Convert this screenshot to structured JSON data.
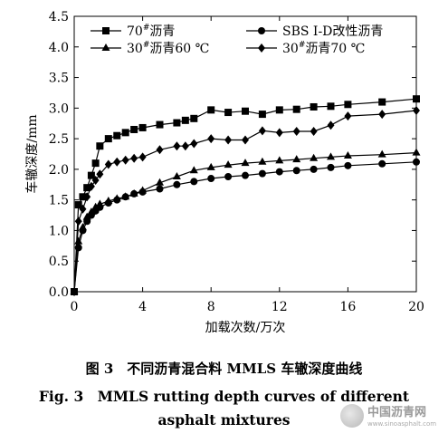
{
  "chart_data": {
    "type": "line",
    "xlabel": "加载次数/万次",
    "ylabel": "车辙深度/mm",
    "xlim": [
      0,
      20
    ],
    "ylim": [
      0,
      4.5
    ],
    "xticks": [
      "0",
      "4",
      "8",
      "12",
      "16",
      "20"
    ],
    "yticks": [
      "0.0",
      "0.5",
      "1.0",
      "1.5",
      "2.0",
      "2.5",
      "3.0",
      "3.5",
      "4.0",
      "4.5"
    ],
    "grid": false,
    "legend_position": "top",
    "series": [
      {
        "name": "70#沥青",
        "marker": "square",
        "points": [
          [
            0,
            0
          ],
          [
            0.25,
            1.42
          ],
          [
            0.5,
            1.55
          ],
          [
            0.75,
            1.7
          ],
          [
            1,
            1.9
          ],
          [
            1.25,
            2.1
          ],
          [
            1.5,
            2.38
          ],
          [
            2,
            2.5
          ],
          [
            2.5,
            2.55
          ],
          [
            3,
            2.6
          ],
          [
            3.5,
            2.65
          ],
          [
            4,
            2.68
          ],
          [
            5,
            2.73
          ],
          [
            6,
            2.76
          ],
          [
            6.5,
            2.8
          ],
          [
            7,
            2.83
          ],
          [
            8,
            2.97
          ],
          [
            9,
            2.93
          ],
          [
            10,
            2.95
          ],
          [
            11,
            2.9
          ],
          [
            12,
            2.97
          ],
          [
            13,
            2.98
          ],
          [
            14,
            3.02
          ],
          [
            15,
            3.03
          ],
          [
            16,
            3.06
          ],
          [
            18,
            3.1
          ],
          [
            20,
            3.15
          ]
        ]
      },
      {
        "name": "SBS I-D改性沥青",
        "marker": "circle",
        "points": [
          [
            0,
            0
          ],
          [
            0.25,
            0.72
          ],
          [
            0.5,
            1.0
          ],
          [
            0.75,
            1.15
          ],
          [
            1,
            1.25
          ],
          [
            1.25,
            1.32
          ],
          [
            1.5,
            1.38
          ],
          [
            2,
            1.45
          ],
          [
            2.5,
            1.5
          ],
          [
            3,
            1.55
          ],
          [
            3.5,
            1.6
          ],
          [
            4,
            1.63
          ],
          [
            5,
            1.68
          ],
          [
            6,
            1.75
          ],
          [
            7,
            1.8
          ],
          [
            8,
            1.85
          ],
          [
            9,
            1.88
          ],
          [
            10,
            1.9
          ],
          [
            11,
            1.93
          ],
          [
            12,
            1.96
          ],
          [
            13,
            1.98
          ],
          [
            14,
            2.0
          ],
          [
            15,
            2.03
          ],
          [
            16,
            2.06
          ],
          [
            18,
            2.09
          ],
          [
            20,
            2.12
          ]
        ]
      },
      {
        "name": "30#沥青60 ℃",
        "marker": "triangle",
        "points": [
          [
            0,
            0
          ],
          [
            0.25,
            0.82
          ],
          [
            0.5,
            1.05
          ],
          [
            0.75,
            1.22
          ],
          [
            1,
            1.3
          ],
          [
            1.25,
            1.38
          ],
          [
            1.5,
            1.43
          ],
          [
            2,
            1.48
          ],
          [
            2.5,
            1.52
          ],
          [
            3,
            1.55
          ],
          [
            3.5,
            1.6
          ],
          [
            4,
            1.65
          ],
          [
            5,
            1.78
          ],
          [
            6,
            1.88
          ],
          [
            7,
            1.98
          ],
          [
            8,
            2.03
          ],
          [
            9,
            2.07
          ],
          [
            10,
            2.1
          ],
          [
            11,
            2.12
          ],
          [
            12,
            2.14
          ],
          [
            13,
            2.16
          ],
          [
            14,
            2.18
          ],
          [
            15,
            2.2
          ],
          [
            16,
            2.22
          ],
          [
            18,
            2.24
          ],
          [
            20,
            2.27
          ]
        ]
      },
      {
        "name": "30#沥青70 ℃",
        "marker": "diamond",
        "points": [
          [
            0,
            0
          ],
          [
            0.25,
            1.15
          ],
          [
            0.5,
            1.35
          ],
          [
            0.75,
            1.55
          ],
          [
            1,
            1.72
          ],
          [
            1.25,
            1.82
          ],
          [
            1.5,
            1.92
          ],
          [
            2,
            2.08
          ],
          [
            2.5,
            2.12
          ],
          [
            3,
            2.15
          ],
          [
            3.5,
            2.18
          ],
          [
            4,
            2.2
          ],
          [
            5,
            2.32
          ],
          [
            6,
            2.38
          ],
          [
            6.5,
            2.38
          ],
          [
            7,
            2.42
          ],
          [
            8,
            2.5
          ],
          [
            9,
            2.48
          ],
          [
            10,
            2.48
          ],
          [
            11,
            2.63
          ],
          [
            12,
            2.6
          ],
          [
            13,
            2.62
          ],
          [
            14,
            2.62
          ],
          [
            15,
            2.72
          ],
          [
            16,
            2.87
          ],
          [
            18,
            2.9
          ],
          [
            20,
            2.96
          ]
        ]
      }
    ]
  },
  "captions": {
    "cn": "图 3　不同沥青混合料 MMLS 车辙深度曲线",
    "en_line1": "Fig. 3　MMLS rutting depth curves of different",
    "en_line2": "asphalt mixtures"
  },
  "watermark": {
    "name": "中国沥青网",
    "url": "www.sinoasphalt.com"
  }
}
